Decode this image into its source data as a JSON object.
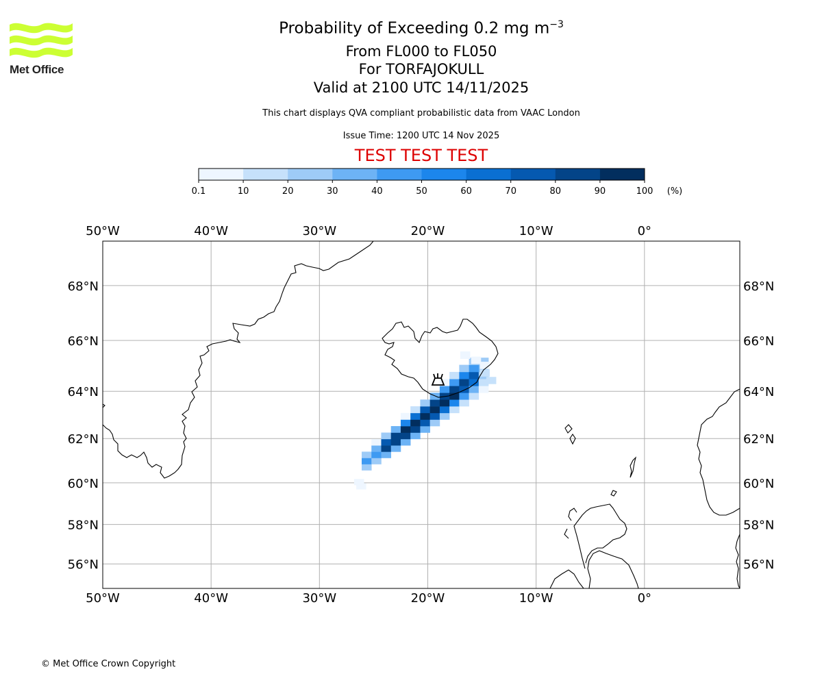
{
  "header": {
    "title_main": "Probability of Exceeding 0.2 mg m",
    "title_sup": "−3",
    "level_range": "From FL000 to FL050",
    "volcano": "For TORFAJOKULL",
    "valid_time": "Valid at 2100 UTC 14/11/2025",
    "disclaimer": "This chart displays QVA compliant probabilistic data from VAAC London",
    "issue_time": "Issue Time: 1200 UTC 14 Nov 2025",
    "test_banner": "TEST TEST TEST"
  },
  "logo": {
    "text": "Met Office",
    "color": "#ccff33"
  },
  "colorbar": {
    "ticks": [
      "0.1",
      "10",
      "20",
      "30",
      "40",
      "50",
      "60",
      "70",
      "80",
      "90",
      "100"
    ],
    "unit": "(%)",
    "colors": [
      "#eef6ff",
      "#c6e1fb",
      "#9ecbf7",
      "#6db3f5",
      "#3e9af2",
      "#1c86ec",
      "#0a6fd2",
      "#0559b0",
      "#034488",
      "#022e5e"
    ]
  },
  "map": {
    "lon_labels": [
      "50°W",
      "40°W",
      "30°W",
      "20°W",
      "10°W",
      "0°"
    ],
    "lat_labels": [
      "68°N",
      "66°N",
      "64°N",
      "62°N",
      "60°N",
      "58°N",
      "56°N"
    ],
    "lon_values": [
      -50,
      -40,
      -30,
      -20,
      -10,
      0
    ],
    "lat_values": [
      68,
      66,
      64,
      62,
      60,
      58,
      56
    ],
    "extent": {
      "lon_min": -50,
      "lon_max": 8.8,
      "lat_min": 54.7,
      "lat_max": 69.5
    },
    "volcano_marker": {
      "lon": -19.1,
      "lat": 63.9,
      "name": "TORFAJOKULL"
    },
    "plume_colors": {
      "low": "#dbeeff",
      "mid": "#5aa8f0",
      "high": "#1a78d8",
      "core": "#022e5e"
    }
  },
  "footer": {
    "copyright": "© Met Office Crown Copyright"
  }
}
